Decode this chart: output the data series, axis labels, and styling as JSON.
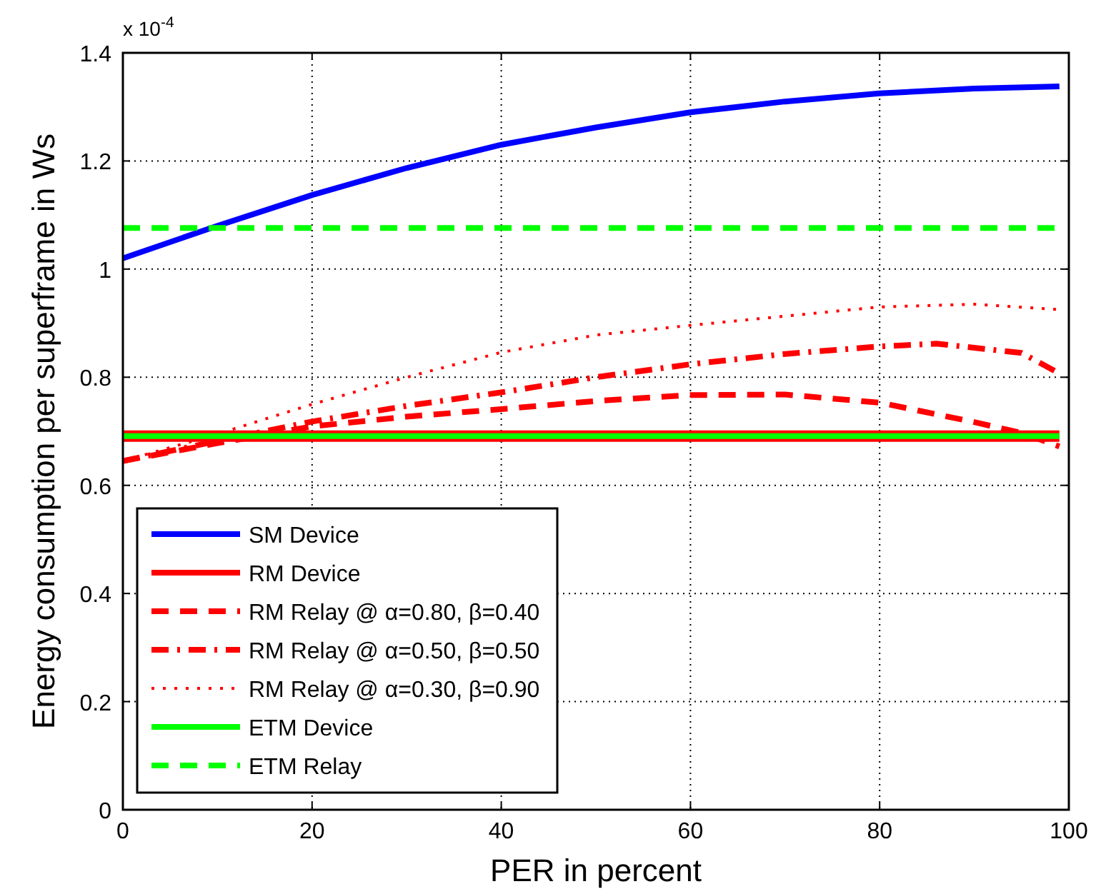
{
  "chart_data": {
    "type": "line",
    "xlabel": "PER in percent",
    "ylabel": "Energy consumption per superframe in Ws",
    "annotations": [
      "x 10$^{-4}$"
    ],
    "xlim": [
      0,
      100
    ],
    "xticks": [
      0,
      20,
      40,
      60,
      80,
      100
    ],
    "ylim": [
      0,
      1.4
    ],
    "yticks": [
      0,
      0.2,
      0.4,
      0.6,
      0.8,
      1,
      1.2,
      1.4
    ],
    "grid": true,
    "legend": "bottom left",
    "series": [
      {
        "name": "SM Device",
        "color": "#0000ff",
        "line_style": "solid",
        "x": [
          0,
          10,
          20,
          30,
          40,
          50,
          60,
          70,
          80,
          90,
          99
        ],
        "values": [
          1.02,
          1.08,
          1.137,
          1.187,
          1.23,
          1.262,
          1.29,
          1.31,
          1.325,
          1.334,
          1.338
        ]
      },
      {
        "name": "RM Device",
        "color": "#ff0000",
        "line_style": "solid",
        "x": [
          0,
          99
        ],
        "values": [
          0.691,
          0.691
        ]
      },
      {
        "name": "RM Relay @ α=0.80, β=0.40",
        "color": "#ff0000",
        "line_style": "dashed",
        "x": [
          0,
          10,
          20,
          30,
          40,
          50,
          60,
          70,
          80,
          90,
          95,
          99
        ],
        "values": [
          0.645,
          0.678,
          0.709,
          0.727,
          0.741,
          0.756,
          0.767,
          0.768,
          0.753,
          0.717,
          0.697,
          0.672
        ]
      },
      {
        "name": "RM Relay @ α=0.50, β=0.50",
        "color": "#ff0000",
        "line_style": "dashdot",
        "x": [
          0,
          10,
          20,
          30,
          40,
          50,
          60,
          70,
          80,
          86,
          95,
          99
        ],
        "values": [
          0.645,
          0.682,
          0.718,
          0.747,
          0.772,
          0.8,
          0.824,
          0.843,
          0.857,
          0.862,
          0.845,
          0.807
        ]
      },
      {
        "name": "RM Relay @ α=0.30, β=0.90",
        "color": "#ff0000",
        "line_style": "dotted",
        "x": [
          0,
          10,
          20,
          30,
          40,
          50,
          60,
          70,
          80,
          90,
          99
        ],
        "values": [
          0.645,
          0.695,
          0.75,
          0.8,
          0.846,
          0.878,
          0.896,
          0.913,
          0.93,
          0.935,
          0.925
        ]
      },
      {
        "name": "ETM Device",
        "color": "#00ff00",
        "line_style": "solid",
        "x": [
          0,
          99
        ],
        "values": [
          0.691,
          0.691
        ]
      },
      {
        "name": "ETM Relay",
        "color": "#00ff00",
        "line_style": "dashed",
        "x": [
          0,
          99
        ],
        "values": [
          1.076,
          1.076
        ]
      }
    ]
  }
}
